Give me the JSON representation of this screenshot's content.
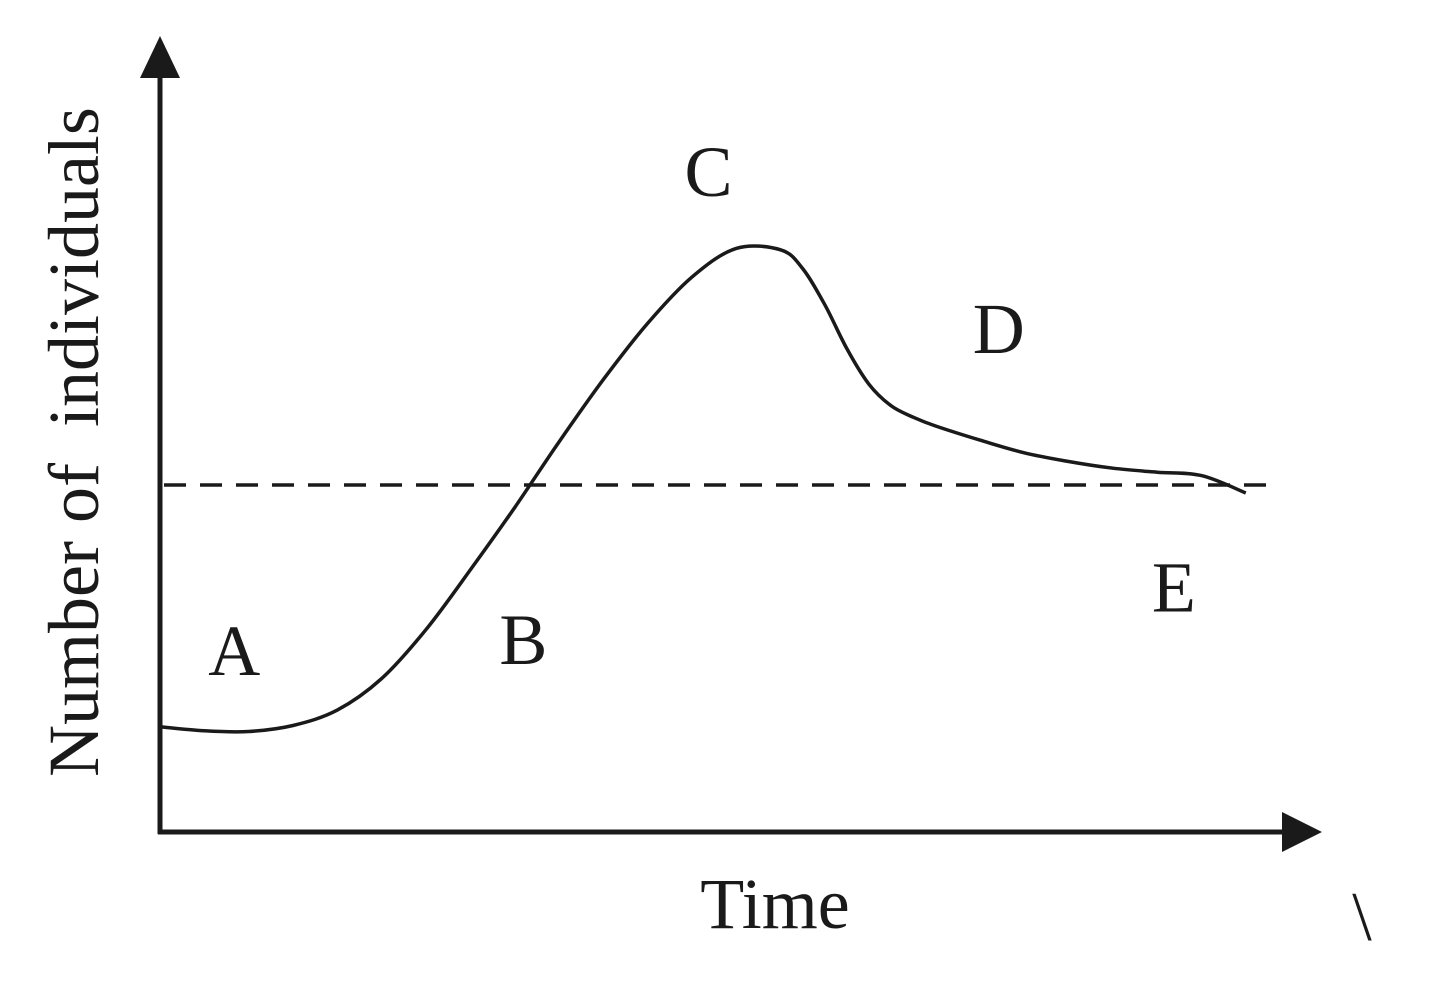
{
  "chart_data": {
    "type": "line",
    "title": "",
    "xlabel": "Time",
    "ylabel": "Number of  individuals",
    "xlim": [
      0,
      100
    ],
    "ylim": [
      0,
      100
    ],
    "grid": false,
    "series": [
      {
        "x": [
          0,
          4,
          8,
          12,
          16,
          20,
          24,
          28,
          32,
          36,
          40,
          44,
          48,
          52,
          56,
          58,
          60,
          62,
          64,
          66,
          68,
          70,
          74,
          78,
          82,
          86,
          90,
          94,
          98
        ],
        "values": [
          15.7,
          15.1,
          15.0,
          15.9,
          18.2,
          22.9,
          30.2,
          39.1,
          48.4,
          58.2,
          67.5,
          75.9,
          82.8,
          87.1,
          86.9,
          84.1,
          78.7,
          72.1,
          66.8,
          63.6,
          61.9,
          60.6,
          58.5,
          56.6,
          55.3,
          54.3,
          53.7,
          53.2,
          50.6
        ]
      }
    ],
    "reference_lines": [
      {
        "axis": "y",
        "value": 51.8,
        "style": "dashed"
      }
    ],
    "annotations": [
      {
        "text": "A",
        "x": 6.7,
        "y": 23.4
      },
      {
        "text": "B",
        "x": 32.8,
        "y": 25.1
      },
      {
        "text": "C",
        "x": 49.5,
        "y": 94.9
      },
      {
        "text": "D",
        "x": 75.7,
        "y": 71.5
      },
      {
        "text": "E",
        "x": 91.5,
        "y": 32.9
      }
    ],
    "stray_mark": "\\"
  }
}
